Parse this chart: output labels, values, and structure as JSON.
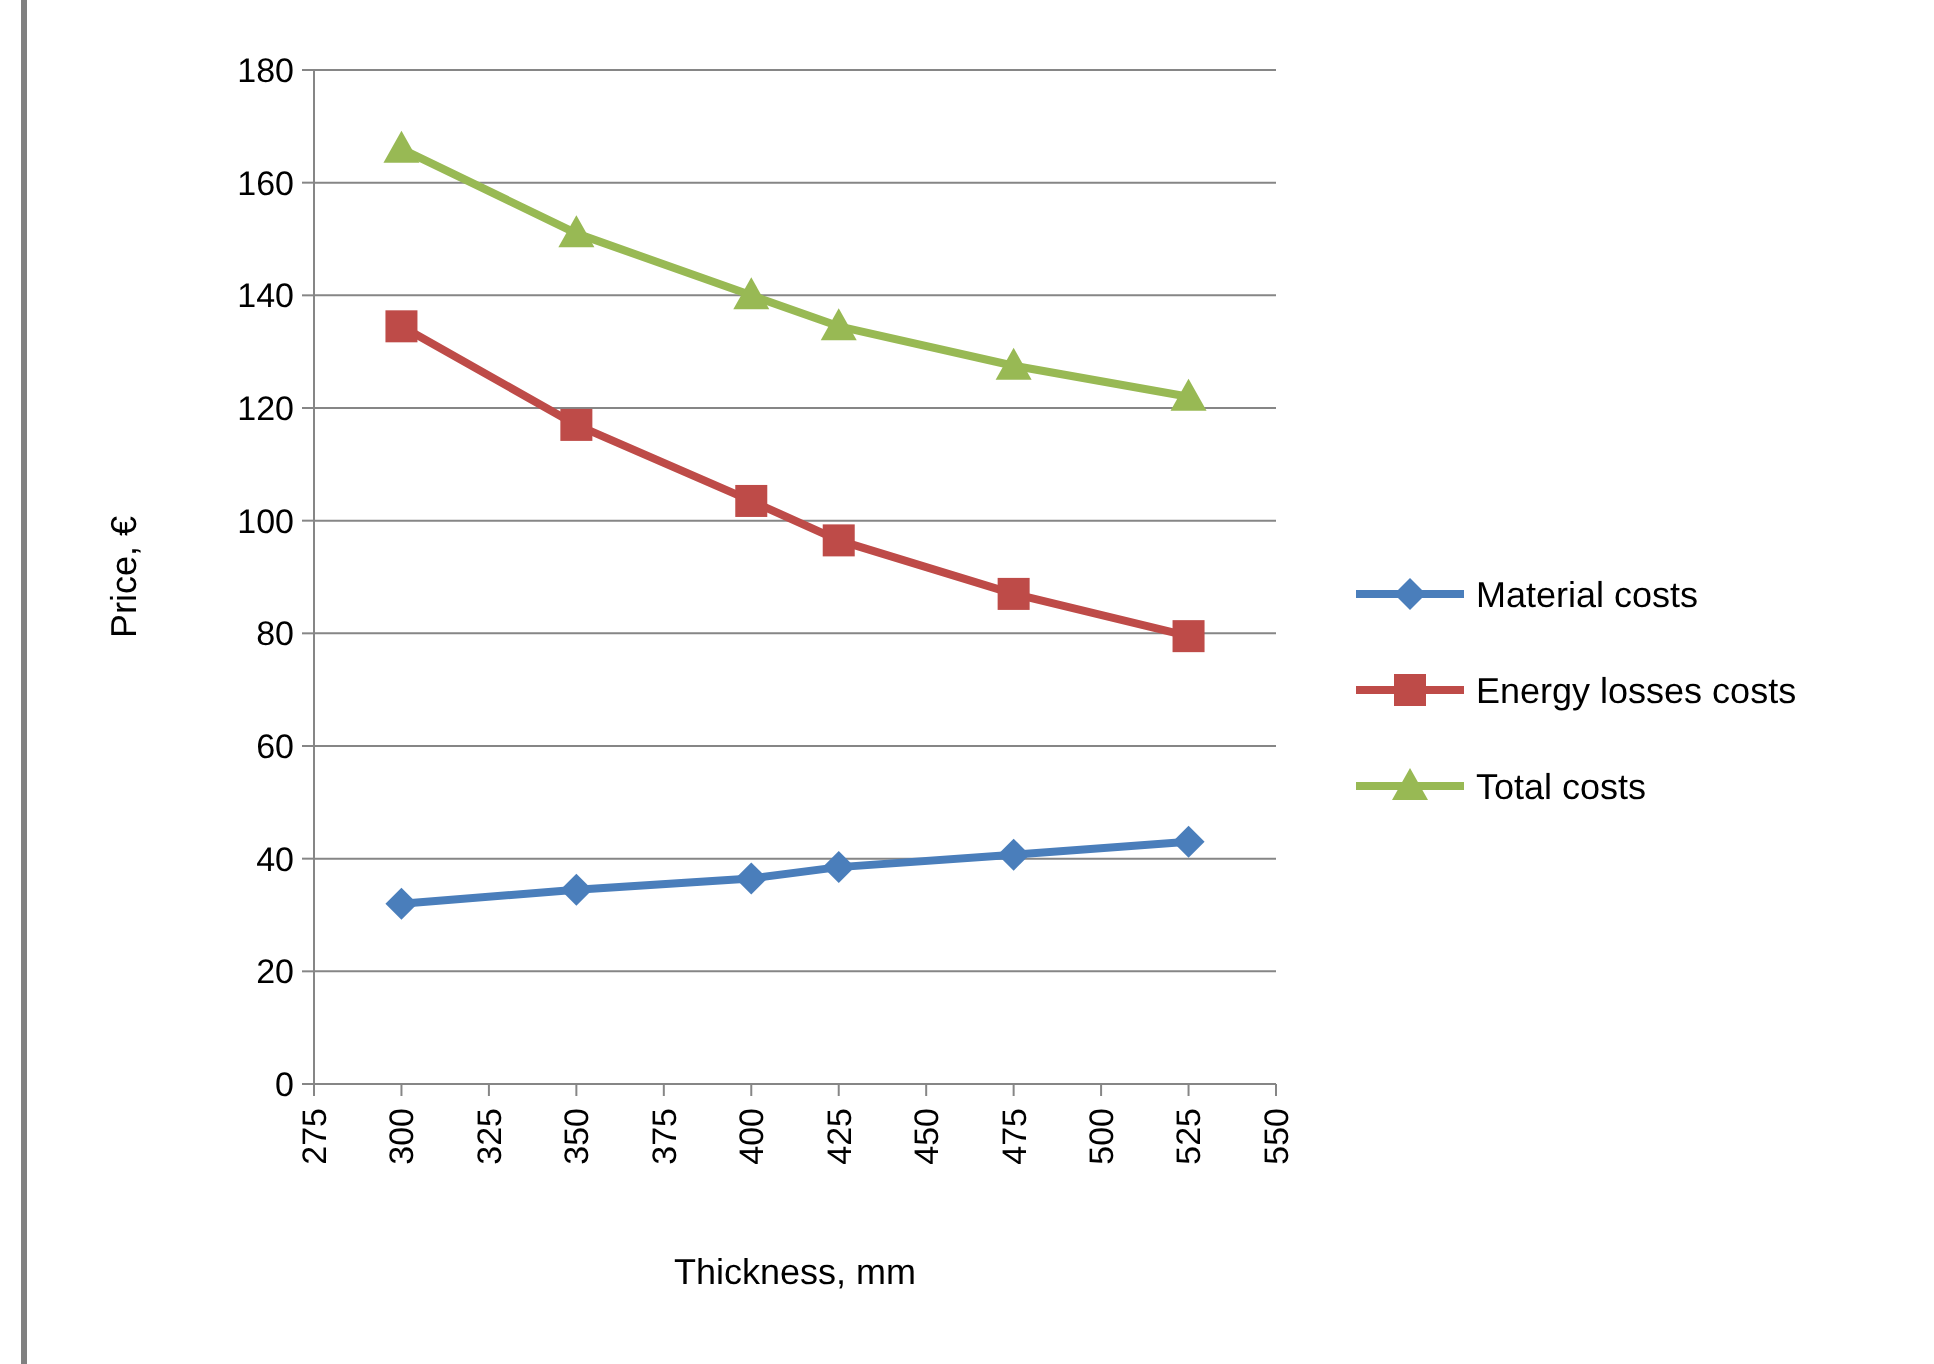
{
  "chart_data": {
    "type": "line",
    "xlabel": "Thickness, mm",
    "ylabel": "Price, €",
    "x": [
      300,
      350,
      400,
      425,
      475,
      525
    ],
    "series": [
      {
        "name": "Material costs",
        "color": "#4a7ebb",
        "marker": "diamond",
        "values": [
          32,
          34.5,
          36.5,
          38.5,
          40.7,
          43
        ]
      },
      {
        "name": "Energy losses costs",
        "color": "#be4b48",
        "marker": "square",
        "values": [
          134.5,
          117,
          103.5,
          96.5,
          87,
          79.5
        ]
      },
      {
        "name": "Total costs",
        "color": "#98b954",
        "marker": "triangle",
        "values": [
          166,
          151,
          140,
          134.5,
          127.5,
          122
        ]
      }
    ],
    "xlim": [
      275,
      550
    ],
    "xticks": [
      275,
      300,
      325,
      350,
      375,
      400,
      425,
      450,
      475,
      500,
      525,
      550
    ],
    "ylim": [
      0,
      180
    ],
    "yticks": [
      0,
      20,
      40,
      60,
      80,
      100,
      120,
      140,
      160,
      180
    ],
    "grid": "y",
    "legend": "right"
  }
}
